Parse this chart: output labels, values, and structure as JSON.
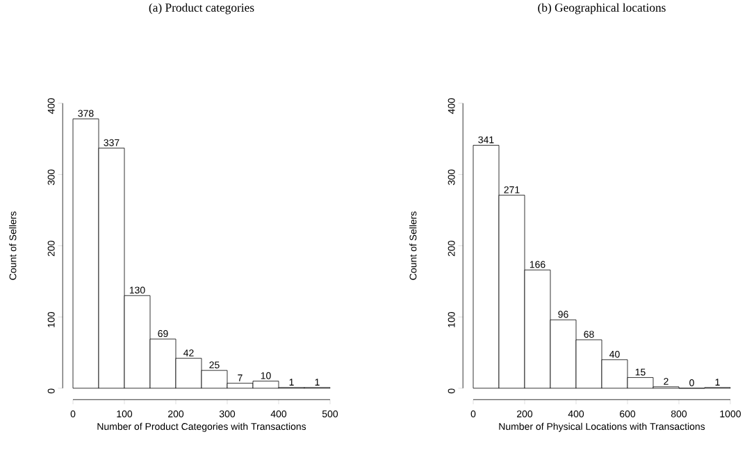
{
  "chart_data": [
    {
      "type": "histogram",
      "title": "(a) Product categories",
      "xlabel": "Number of Product Categories with Transactions",
      "ylabel": "Count of Sellers",
      "bins": [
        0,
        50,
        100,
        150,
        200,
        250,
        300,
        350,
        400,
        450,
        500
      ],
      "values": [
        378,
        337,
        130,
        69,
        42,
        25,
        7,
        10,
        1,
        1
      ],
      "xlim": [
        0,
        500
      ],
      "ylim": [
        0,
        400
      ],
      "xticks": [
        0,
        100,
        200,
        300,
        400,
        500
      ],
      "yticks": [
        0,
        100,
        200,
        300,
        400
      ],
      "data_labels": true
    },
    {
      "type": "histogram",
      "title": "(b) Geographical locations",
      "xlabel": "Number of Physical Locations with Transactions",
      "ylabel": "Count of Sellers",
      "bins": [
        0,
        100,
        200,
        300,
        400,
        500,
        600,
        700,
        800,
        900,
        1000
      ],
      "values": [
        341,
        271,
        166,
        96,
        68,
        40,
        15,
        2,
        0,
        1
      ],
      "xlim": [
        0,
        1000
      ],
      "ylim": [
        0,
        400
      ],
      "xticks": [
        0,
        200,
        400,
        600,
        800,
        1000
      ],
      "yticks": [
        0,
        100,
        200,
        300,
        400
      ],
      "data_labels": true
    }
  ]
}
